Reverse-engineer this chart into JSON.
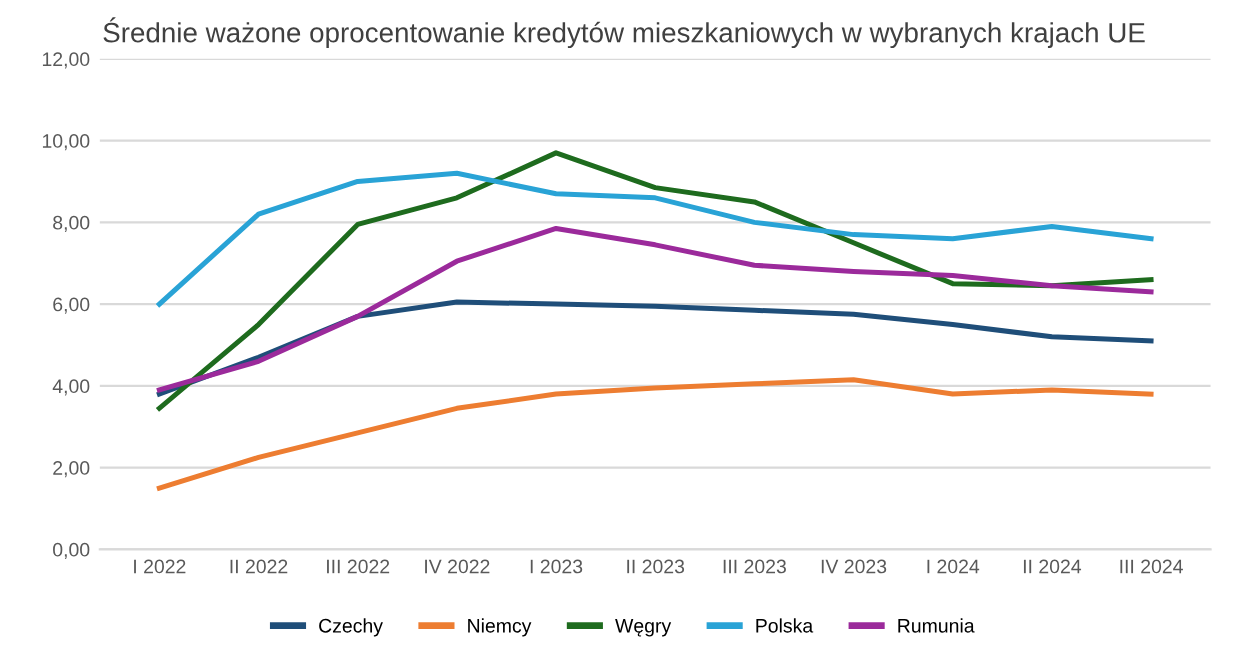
{
  "chart_data": {
    "type": "line",
    "title": "Średnie ważone oprocentowanie kredytów mieszkaniowych w wybranych krajach UE",
    "categories": [
      "I 2022",
      "II 2022",
      "III 2022",
      "IV 2022",
      "I 2023",
      "II 2023",
      "III 2023",
      "IV 2023",
      "I 2024",
      "II 2024",
      "III 2024"
    ],
    "series": [
      {
        "name": "Czechy",
        "color": "#1f4e79",
        "values": [
          3.8,
          4.7,
          5.7,
          6.05,
          6.0,
          5.95,
          5.85,
          5.75,
          5.5,
          5.2,
          5.1
        ]
      },
      {
        "name": "Niemcy",
        "color": "#ed7d31",
        "values": [
          1.5,
          2.25,
          2.85,
          3.45,
          3.8,
          3.95,
          4.05,
          4.15,
          3.8,
          3.9,
          3.8
        ]
      },
      {
        "name": "Węgry",
        "color": "#1e6b1e",
        "values": [
          3.45,
          5.5,
          7.95,
          8.6,
          9.7,
          8.85,
          8.5,
          7.5,
          6.5,
          6.45,
          6.6
        ]
      },
      {
        "name": "Polska",
        "color": "#29a3d6",
        "values": [
          6.0,
          8.2,
          9.0,
          9.2,
          8.7,
          8.6,
          8.0,
          7.7,
          7.6,
          7.9,
          7.6
        ]
      },
      {
        "name": "Rumunia",
        "color": "#9b2a9b",
        "values": [
          3.9,
          4.6,
          5.7,
          7.05,
          7.85,
          7.45,
          6.95,
          6.8,
          6.7,
          6.45,
          6.3
        ]
      }
    ],
    "ylim": [
      0,
      12
    ],
    "yticks": [
      {
        "value": 0,
        "label": "0,00"
      },
      {
        "value": 2,
        "label": "2,00"
      },
      {
        "value": 4,
        "label": "4,00"
      },
      {
        "value": 6,
        "label": "6,00"
      },
      {
        "value": 8,
        "label": "8,00"
      },
      {
        "value": 10,
        "label": "10,00"
      },
      {
        "value": 12,
        "label": "12,00"
      }
    ],
    "grid": "y",
    "legend": "bottom",
    "marker": "none",
    "line_style": "solid"
  }
}
